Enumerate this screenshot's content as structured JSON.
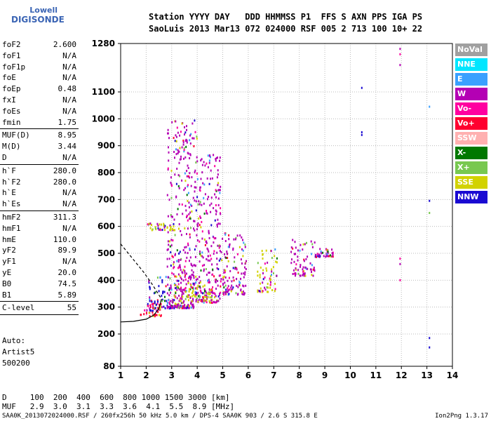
{
  "logo": {
    "line1": "Lowell",
    "line2": "DIGISONDE"
  },
  "header": {
    "labels": "Station YYYY DAY   DDD HHMMSS P1  FFS S AXN PPS IGA PS",
    "values": "SaoLuis 2013 Mar13 072 024000 RSF 005 2 713 100 10+ 22"
  },
  "params": {
    "group1": [
      {
        "key": "foF2",
        "value": "2.600"
      },
      {
        "key": "foF1",
        "value": "N/A"
      },
      {
        "key": "foF1p",
        "value": "N/A"
      },
      {
        "key": "foE",
        "value": "N/A"
      },
      {
        "key": "foEp",
        "value": "0.48"
      },
      {
        "key": "fxI",
        "value": "N/A"
      },
      {
        "key": "foEs",
        "value": "N/A"
      },
      {
        "key": "fmin",
        "value": "1.75"
      }
    ],
    "group2": [
      {
        "key": "MUF(D)",
        "value": "8.95"
      },
      {
        "key": "M(D)",
        "value": "3.44"
      },
      {
        "key": "D",
        "value": "N/A"
      }
    ],
    "group3": [
      {
        "key": "h`F",
        "value": "280.0"
      },
      {
        "key": "h`F2",
        "value": "280.0"
      },
      {
        "key": "h`E",
        "value": "N/A"
      },
      {
        "key": "h`Es",
        "value": "N/A"
      }
    ],
    "group4": [
      {
        "key": "hmF2",
        "value": "311.3"
      },
      {
        "key": "hmF1",
        "value": "N/A"
      },
      {
        "key": "hmE",
        "value": "110.0"
      },
      {
        "key": "yF2",
        "value": "89.9"
      },
      {
        "key": "yF1",
        "value": "N/A"
      },
      {
        "key": "yE",
        "value": "20.0"
      },
      {
        "key": "B0",
        "value": "74.5"
      },
      {
        "key": "B1",
        "value": "5.89"
      }
    ],
    "group5": [
      {
        "key": "C-level",
        "value": "55"
      }
    ]
  },
  "auto": {
    "line1": "Auto:",
    "line2": "Artist5",
    "line3": "500200"
  },
  "legend": [
    {
      "label": "NoVal",
      "color": "#a0a0a0"
    },
    {
      "label": "NNE",
      "color": "#00e6ff"
    },
    {
      "label": "E",
      "color": "#3aa0ff"
    },
    {
      "label": "W",
      "color": "#b400b4"
    },
    {
      "label": "Vo-",
      "color": "#ff00a0"
    },
    {
      "label": "Vo+",
      "color": "#ff0030"
    },
    {
      "label": "SSW",
      "color": "#ffb0b0"
    },
    {
      "label": "X-",
      "color": "#007800"
    },
    {
      "label": "X+",
      "color": "#78c850"
    },
    {
      "label": "SSE",
      "color": "#d2d200"
    },
    {
      "label": "NNW",
      "color": "#1a0ad2"
    }
  ],
  "footer": {
    "line1": "D     100  200  400  600  800 1000 1500 3000 [km]",
    "line2": "MUF   2.9  3.0  3.1  3.3  3.6  4.1  5.5  8.9 [MHz]",
    "file": "SAA0K_2013072024000.RSF / 260fx256h 50 kHz 5.0 km / DPS-4 SAA0K 903 / 2.6 S 315.8 E",
    "version": "Ion2Png 1.3.17"
  },
  "chart_data": {
    "type": "scatter",
    "title": "",
    "xlabel": "",
    "ylabel": "",
    "xlim": [
      1,
      14
    ],
    "ylim": [
      80,
      1280
    ],
    "xticks": [
      1,
      2,
      3,
      4,
      5,
      6,
      7,
      8,
      9,
      10,
      11,
      12,
      13,
      14
    ],
    "yticks": [
      80,
      200,
      300,
      400,
      500,
      600,
      700,
      800,
      900,
      1000,
      1100,
      1280
    ],
    "grid": true,
    "legend_position": "right",
    "traces": [
      {
        "name": "virtual height profile (solid)",
        "x": [
          1.0,
          1.5,
          2.0,
          2.3,
          2.5,
          2.6
        ],
        "y": [
          245,
          247,
          255,
          270,
          295,
          330
        ]
      },
      {
        "name": "profile extension (dashed)",
        "x": [
          1.0,
          1.3,
          1.6,
          1.9,
          2.2,
          2.5,
          2.6
        ],
        "y": [
          535,
          500,
          465,
          430,
          390,
          345,
          330
        ]
      }
    ],
    "echo_clusters": [
      {
        "x_range": [
          1.75,
          2.6
        ],
        "y_range": [
          270,
          330
        ],
        "dominant": "Vo+"
      },
      {
        "x_range": [
          2.0,
          2.9
        ],
        "y_range": [
          290,
          420
        ],
        "dominant": "NNW"
      },
      {
        "x_range": [
          2.8,
          4.0
        ],
        "y_range": [
          300,
          1000
        ],
        "dominant": "W"
      },
      {
        "x_range": [
          4.0,
          4.9
        ],
        "y_range": [
          320,
          870
        ],
        "dominant": "W"
      },
      {
        "x_range": [
          1.9,
          3.1
        ],
        "y_range": [
          590,
          615
        ],
        "dominant": "SSE"
      },
      {
        "x_range": [
          3.0,
          4.6
        ],
        "y_range": [
          340,
          420
        ],
        "dominant": "SSE"
      },
      {
        "x_range": [
          4.9,
          5.9
        ],
        "y_range": [
          350,
          600
        ],
        "dominant": "W"
      },
      {
        "x_range": [
          6.3,
          7.1
        ],
        "y_range": [
          360,
          520
        ],
        "dominant": "SSE"
      },
      {
        "x_range": [
          7.6,
          8.6
        ],
        "y_range": [
          420,
          560
        ],
        "dominant": "W"
      },
      {
        "x_range": [
          8.6,
          9.3
        ],
        "y_range": [
          490,
          520
        ],
        "dominant": "W"
      }
    ],
    "isolated_echoes": [
      {
        "x": 10.45,
        "y": 1115,
        "dir": "NNW"
      },
      {
        "x": 10.45,
        "y": 950,
        "dir": "NNW"
      },
      {
        "x": 10.45,
        "y": 940,
        "dir": "NNW"
      },
      {
        "x": 11.95,
        "y": 1260,
        "dir": "W"
      },
      {
        "x": 11.95,
        "y": 1240,
        "dir": "Vo-"
      },
      {
        "x": 11.95,
        "y": 1200,
        "dir": "W"
      },
      {
        "x": 11.95,
        "y": 480,
        "dir": "Vo-"
      },
      {
        "x": 11.95,
        "y": 460,
        "dir": "W"
      },
      {
        "x": 11.95,
        "y": 400,
        "dir": "Vo-"
      },
      {
        "x": 13.1,
        "y": 1045,
        "dir": "E"
      },
      {
        "x": 13.1,
        "y": 695,
        "dir": "NNW"
      },
      {
        "x": 13.1,
        "y": 650,
        "dir": "X+"
      },
      {
        "x": 13.1,
        "y": 185,
        "dir": "NNW"
      },
      {
        "x": 13.1,
        "y": 150,
        "dir": "NNW"
      }
    ]
  }
}
